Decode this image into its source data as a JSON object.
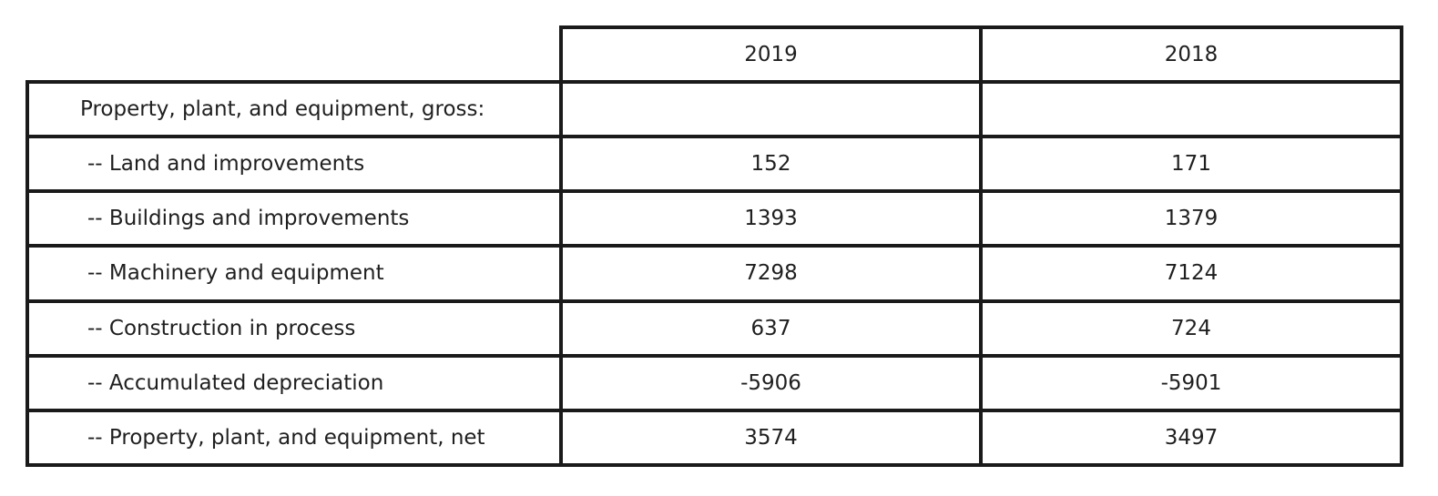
{
  "chart_data": {
    "type": "table",
    "columns": [
      "",
      "2019",
      "2018"
    ],
    "rows": [
      {
        "label": "Property, plant, and equipment, gross:",
        "values": [
          "",
          ""
        ],
        "sub": false
      },
      {
        "label": "--  Land and improvements",
        "values": [
          "152",
          "171"
        ],
        "sub": true
      },
      {
        "label": "--  Buildings and improvements",
        "values": [
          "1393",
          "1379"
        ],
        "sub": true
      },
      {
        "label": "--  Machinery and equipment",
        "values": [
          "7298",
          "7124"
        ],
        "sub": true
      },
      {
        "label": "--  Construction in process",
        "values": [
          "637",
          "724"
        ],
        "sub": true
      },
      {
        "label": "--  Accumulated depreciation",
        "values": [
          "-5906",
          "-5901"
        ],
        "sub": true
      },
      {
        "label": "--  Property, plant, and equipment, net",
        "values": [
          "3574",
          "3497"
        ],
        "sub": true
      }
    ]
  }
}
